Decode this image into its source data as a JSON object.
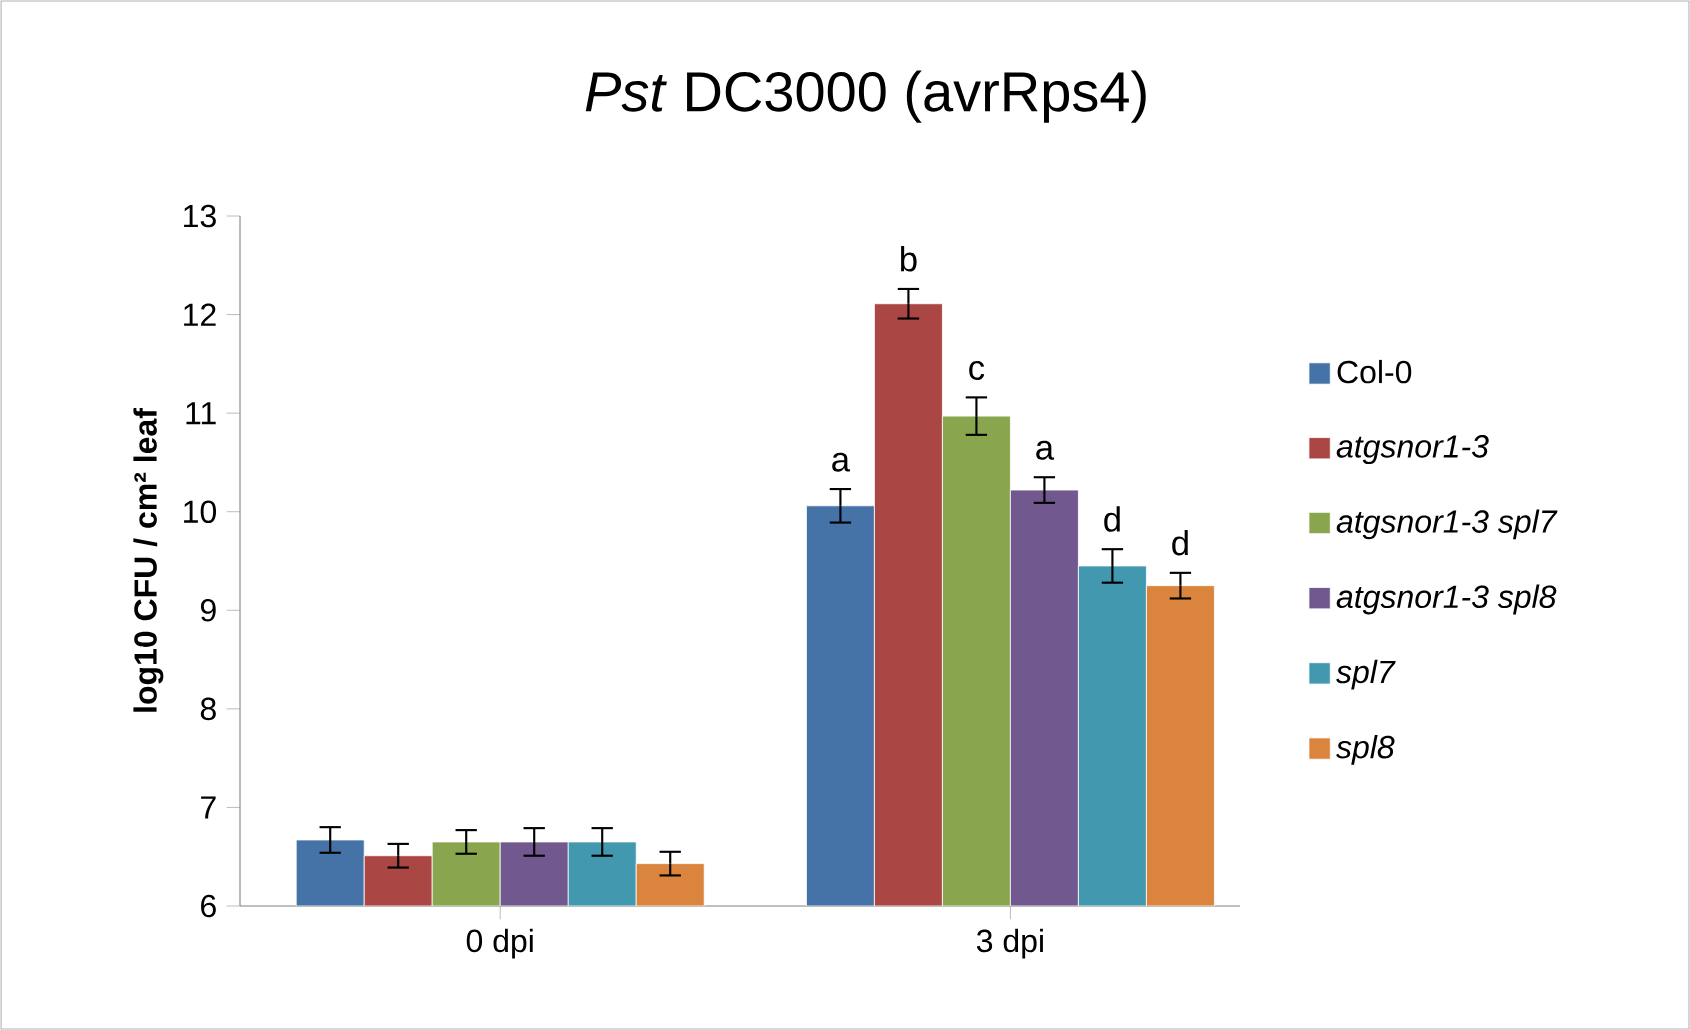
{
  "chart_data": {
    "type": "bar",
    "title": "*Pst* DC3000 (avrRps4)",
    "ylabel": "log10 CFU / cm² leaf",
    "categories": [
      "0 dpi",
      "3 dpi"
    ],
    "series": [
      {
        "name": "Col-0",
        "color": "#4572a7",
        "values": [
          6.67,
          10.06
        ],
        "errors": [
          0.13,
          0.17
        ]
      },
      {
        "name": "*atgsnor1-3*",
        "color": "#aa4643",
        "values": [
          6.51,
          12.11
        ],
        "errors": [
          0.12,
          0.15
        ]
      },
      {
        "name": "*atgsnor1-3 spl7*",
        "color": "#89a54e",
        "values": [
          6.65,
          10.97
        ],
        "errors": [
          0.12,
          0.19
        ]
      },
      {
        "name": "*atgsnor1-3 spl8*",
        "color": "#71588f",
        "values": [
          6.65,
          10.22
        ],
        "errors": [
          0.14,
          0.13
        ]
      },
      {
        "name": "*spl7*",
        "color": "#4198af",
        "values": [
          6.65,
          9.45
        ],
        "errors": [
          0.14,
          0.17
        ]
      },
      {
        "name": "*spl8*",
        "color": "#db843d",
        "values": [
          6.43,
          9.25
        ],
        "errors": [
          0.12,
          0.13
        ]
      }
    ],
    "annotations": [
      "a",
      "b",
      "c",
      "a",
      "d",
      "d"
    ],
    "ylim": [
      6,
      13
    ],
    "yticks": [
      6,
      7,
      8,
      9,
      10,
      11,
      12,
      13
    ],
    "grid": false,
    "legend": "right"
  }
}
